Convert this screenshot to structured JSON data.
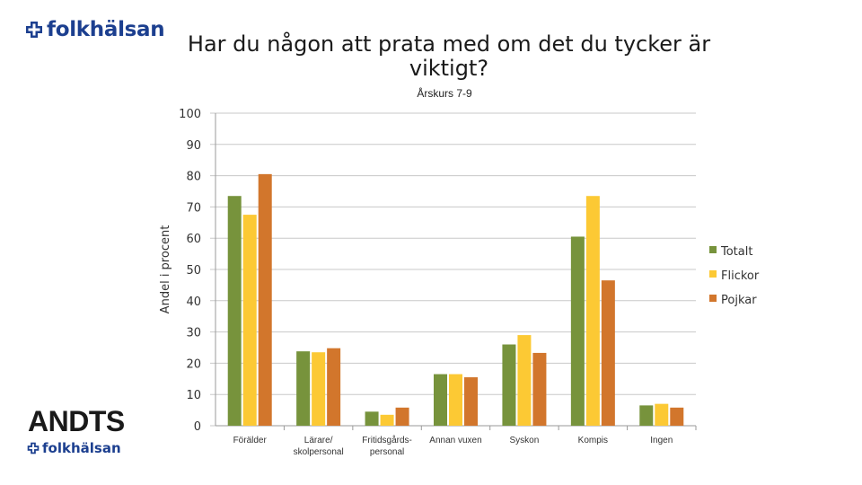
{
  "brand": {
    "top_logo_text": "folkhälsan",
    "andts_text": "ANDTS",
    "bottom_logo_text": "folkhälsan",
    "logo_color": "#1c3f8f"
  },
  "chart_data": {
    "type": "bar",
    "title": "Har du någon att prata med om det du tycker är viktigt?",
    "subtitle": "Årskurs 7-9",
    "xlabel": "",
    "ylabel": "Andel i procent",
    "ylim": [
      0,
      100
    ],
    "yticks": [
      0,
      10,
      20,
      30,
      40,
      50,
      60,
      70,
      80,
      90,
      100
    ],
    "grid": true,
    "legend_position": "right",
    "categories": [
      [
        "Förälder"
      ],
      [
        "Lärare/",
        "skolpersonal"
      ],
      [
        "Fritidsgårds-",
        "personal"
      ],
      [
        "Annan vuxen"
      ],
      [
        "Syskon"
      ],
      [
        "Kompis"
      ],
      [
        "Ingen"
      ]
    ],
    "series": [
      {
        "name": "Totalt",
        "color": "#77933c",
        "values": [
          73.5,
          23.8,
          4.5,
          16.5,
          26,
          60.5,
          6.5
        ]
      },
      {
        "name": "Flickor",
        "color": "#fcc934",
        "values": [
          67.5,
          23.5,
          3.5,
          16.5,
          29,
          73.5,
          7
        ]
      },
      {
        "name": "Pojkar",
        "color": "#d2762c",
        "values": [
          80.5,
          24.8,
          5.8,
          15.5,
          23.3,
          46.5,
          5.8
        ]
      }
    ]
  }
}
